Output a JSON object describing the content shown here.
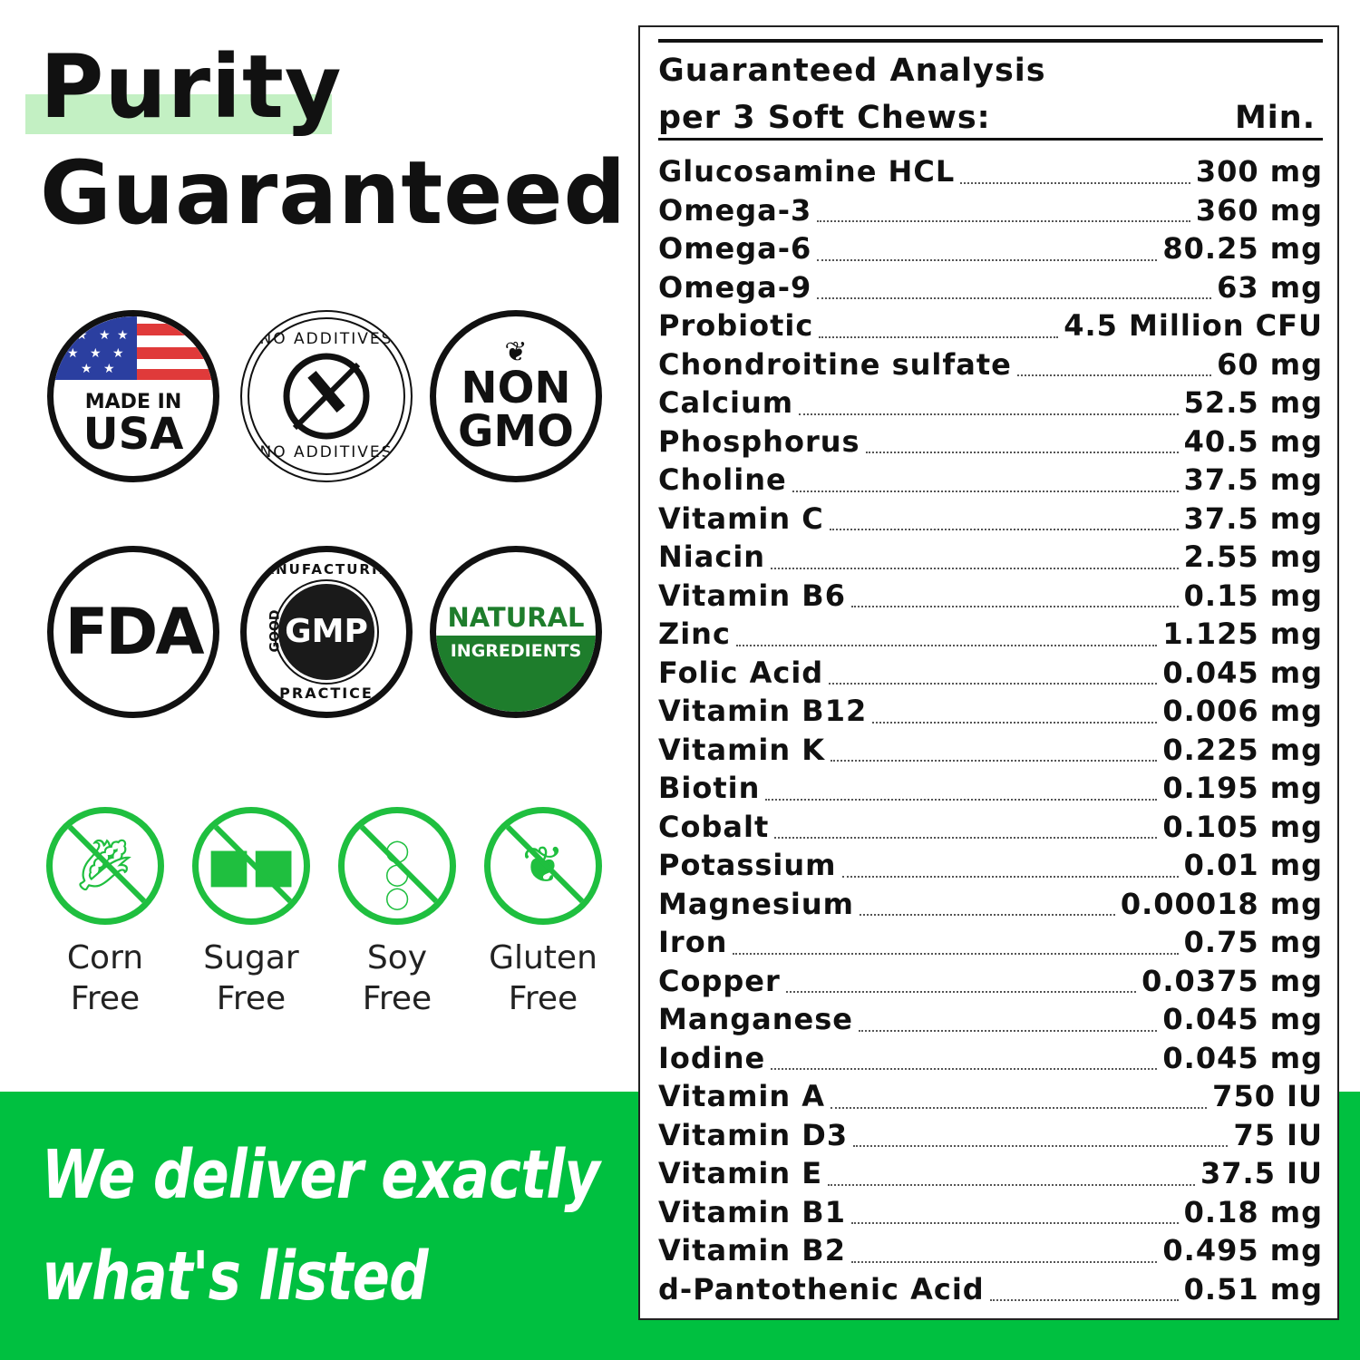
{
  "heading": {
    "line1": "Purity",
    "line2": "Guaranteed"
  },
  "badges": {
    "usa": {
      "line1": "MADE IN",
      "line2": "USA"
    },
    "additives": {
      "text": "NO ADDITIVES"
    },
    "gmo": {
      "line1": "NON",
      "line2": "GMO"
    },
    "fda": {
      "text": "FDA"
    },
    "gmp": {
      "center": "GMP",
      "ring_top": "MANUFACTURING",
      "ring_left": "GOOD",
      "ring_bottom": "PRACTICE"
    },
    "natural": {
      "line1": "NATURAL",
      "line2": "INGREDIENTS"
    }
  },
  "free_items": [
    {
      "line1": "Corn",
      "line2": "Free",
      "icon": "corn-icon"
    },
    {
      "line1": "Sugar",
      "line2": "Free",
      "icon": "sugar-cubes-icon"
    },
    {
      "line1": "Soy",
      "line2": "Free",
      "icon": "soy-icon"
    },
    {
      "line1": "Gluten",
      "line2": "Free",
      "icon": "wheat-icon"
    }
  ],
  "slogan": {
    "line1": "We deliver exactly",
    "line2": "what's listed"
  },
  "analysis": {
    "title_line1": "Guaranteed Analysis",
    "title_line2": "per 3 Soft Chews:",
    "min_label": "Min.",
    "rows": [
      {
        "name": "Glucosamine HCL",
        "value": "300 mg"
      },
      {
        "name": "Omega-3",
        "value": "360 mg"
      },
      {
        "name": "Omega-6",
        "value": "80.25 mg"
      },
      {
        "name": "Omega-9",
        "value": "63 mg"
      },
      {
        "name": "Probiotic",
        "value": "4.5 Million CFU"
      },
      {
        "name": "Chondroitine sulfate",
        "value": "60 mg"
      },
      {
        "name": "Calcium",
        "value": "52.5 mg"
      },
      {
        "name": "Phosphorus",
        "value": "40.5 mg"
      },
      {
        "name": "Choline",
        "value": "37.5 mg"
      },
      {
        "name": "Vitamin C",
        "value": "37.5 mg"
      },
      {
        "name": "Niacin",
        "value": "2.55 mg"
      },
      {
        "name": "Vitamin B6",
        "value": "0.15 mg"
      },
      {
        "name": "Zinc",
        "value": "1.125 mg"
      },
      {
        "name": "Folic Acid",
        "value": "0.045 mg"
      },
      {
        "name": "Vitamin B12",
        "value": "0.006 mg"
      },
      {
        "name": "Vitamin K",
        "value": "0.225 mg"
      },
      {
        "name": "Biotin",
        "value": "0.195 mg"
      },
      {
        "name": "Cobalt",
        "value": "0.105 mg"
      },
      {
        "name": "Potassium",
        "value": "0.01 mg"
      },
      {
        "name": "Magnesium",
        "value": "0.00018 mg"
      },
      {
        "name": "Iron",
        "value": "0.75 mg"
      },
      {
        "name": "Copper",
        "value": "0.0375 mg"
      },
      {
        "name": "Manganese",
        "value": "0.045 mg"
      },
      {
        "name": "Iodine",
        "value": "0.045 mg"
      },
      {
        "name": "Vitamin A",
        "value": "750 IU"
      },
      {
        "name": "Vitamin D3",
        "value": "75 IU"
      },
      {
        "name": "Vitamin E",
        "value": "37.5 IU"
      },
      {
        "name": "Vitamin B1",
        "value": "0.18 mg"
      },
      {
        "name": "Vitamin B2",
        "value": "0.495 mg"
      },
      {
        "name": "d-Pantothenic Acid",
        "value": "0.51 mg"
      }
    ]
  },
  "colors": {
    "green": "#00c040",
    "highlight": "#c3f0c3",
    "natural_green": "#1e7d2c"
  }
}
